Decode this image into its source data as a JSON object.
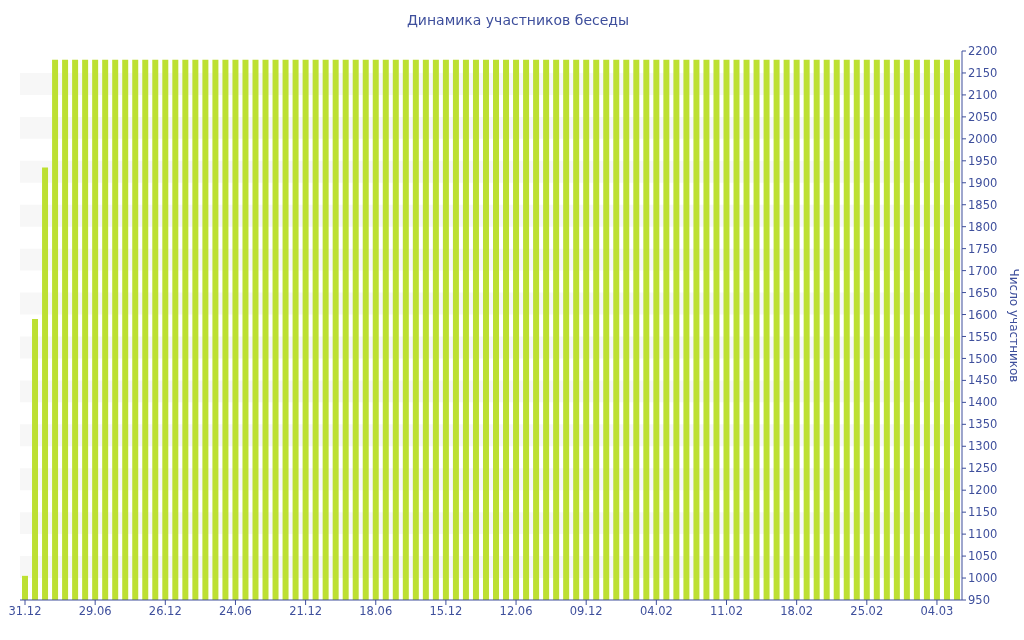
{
  "chart_data": {
    "type": "bar",
    "title": "Динамика участников беседы",
    "ylabel": "Число участников",
    "categories": [
      "31.12",
      null,
      null,
      null,
      null,
      null,
      null,
      "29.06",
      null,
      null,
      null,
      null,
      null,
      null,
      "26.12",
      null,
      null,
      null,
      null,
      null,
      null,
      "24.06",
      null,
      null,
      null,
      null,
      null,
      null,
      "21.12",
      null,
      null,
      null,
      null,
      null,
      null,
      "18.06",
      null,
      null,
      null,
      null,
      null,
      null,
      "15.12",
      null,
      null,
      null,
      null,
      null,
      null,
      "12.06",
      null,
      null,
      null,
      null,
      null,
      null,
      "09.12",
      null,
      null,
      null,
      null,
      null,
      null,
      "04.02",
      null,
      null,
      null,
      null,
      null,
      null,
      "11.02",
      null,
      null,
      null,
      null,
      null,
      null,
      "18.02",
      null,
      null,
      null,
      null,
      null,
      null,
      "25.02",
      null,
      null,
      null,
      null,
      null,
      null,
      "04.03",
      null,
      null
    ],
    "values": [
      1005,
      1590,
      1935,
      2180,
      2180,
      2180,
      2180,
      2180,
      2180,
      2180,
      2180,
      2180,
      2180,
      2180,
      2180,
      2180,
      2180,
      2180,
      2180,
      2180,
      2180,
      2180,
      2180,
      2180,
      2180,
      2180,
      2180,
      2180,
      2180,
      2180,
      2180,
      2180,
      2180,
      2180,
      2180,
      2180,
      2180,
      2180,
      2180,
      2180,
      2180,
      2180,
      2180,
      2180,
      2180,
      2180,
      2180,
      2180,
      2180,
      2180,
      2180,
      2180,
      2180,
      2180,
      2180,
      2180,
      2180,
      2180,
      2180,
      2180,
      2180,
      2180,
      2180,
      2180,
      2180,
      2180,
      2180,
      2180,
      2180,
      2180,
      2180,
      2180,
      2180,
      2180,
      2180,
      2180,
      2180,
      2180,
      2180,
      2180,
      2180,
      2180,
      2180,
      2180,
      2180,
      2180,
      2180,
      2180,
      2180,
      2180,
      2180,
      2180,
      2180,
      2180
    ],
    "color": "#bde032",
    "ylim": [
      950,
      2200
    ],
    "yticks": [
      950,
      1000,
      1050,
      1100,
      1150,
      1200,
      1250,
      1300,
      1350,
      1400,
      1450,
      1500,
      1550,
      1600,
      1650,
      1700,
      1750,
      1800,
      1850,
      1900,
      1950,
      2000,
      2050,
      2100,
      2150,
      2200
    ],
    "bands": [
      {
        "axis": "y",
        "from": 1000,
        "to": 1050,
        "color": "#f7f7f7"
      },
      {
        "axis": "y",
        "from": 1100,
        "to": 1150,
        "color": "#f7f7f7"
      },
      {
        "axis": "y",
        "from": 1200,
        "to": 1250,
        "color": "#f7f7f7"
      },
      {
        "axis": "y",
        "from": 1300,
        "to": 1350,
        "color": "#f7f7f7"
      },
      {
        "axis": "y",
        "from": 1400,
        "to": 1450,
        "color": "#f7f7f7"
      },
      {
        "axis": "y",
        "from": 1500,
        "to": 1550,
        "color": "#f7f7f7"
      },
      {
        "axis": "y",
        "from": 1600,
        "to": 1650,
        "color": "#f7f7f7"
      },
      {
        "axis": "y",
        "from": 1700,
        "to": 1750,
        "color": "#f7f7f7"
      },
      {
        "axis": "y",
        "from": 1800,
        "to": 1850,
        "color": "#f7f7f7"
      },
      {
        "axis": "y",
        "from": 1900,
        "to": 1950,
        "color": "#f7f7f7"
      },
      {
        "axis": "y",
        "from": 2000,
        "to": 2050,
        "color": "#f7f7f7"
      },
      {
        "axis": "y",
        "from": 2100,
        "to": 2150,
        "color": "#f7f7f7"
      }
    ]
  }
}
